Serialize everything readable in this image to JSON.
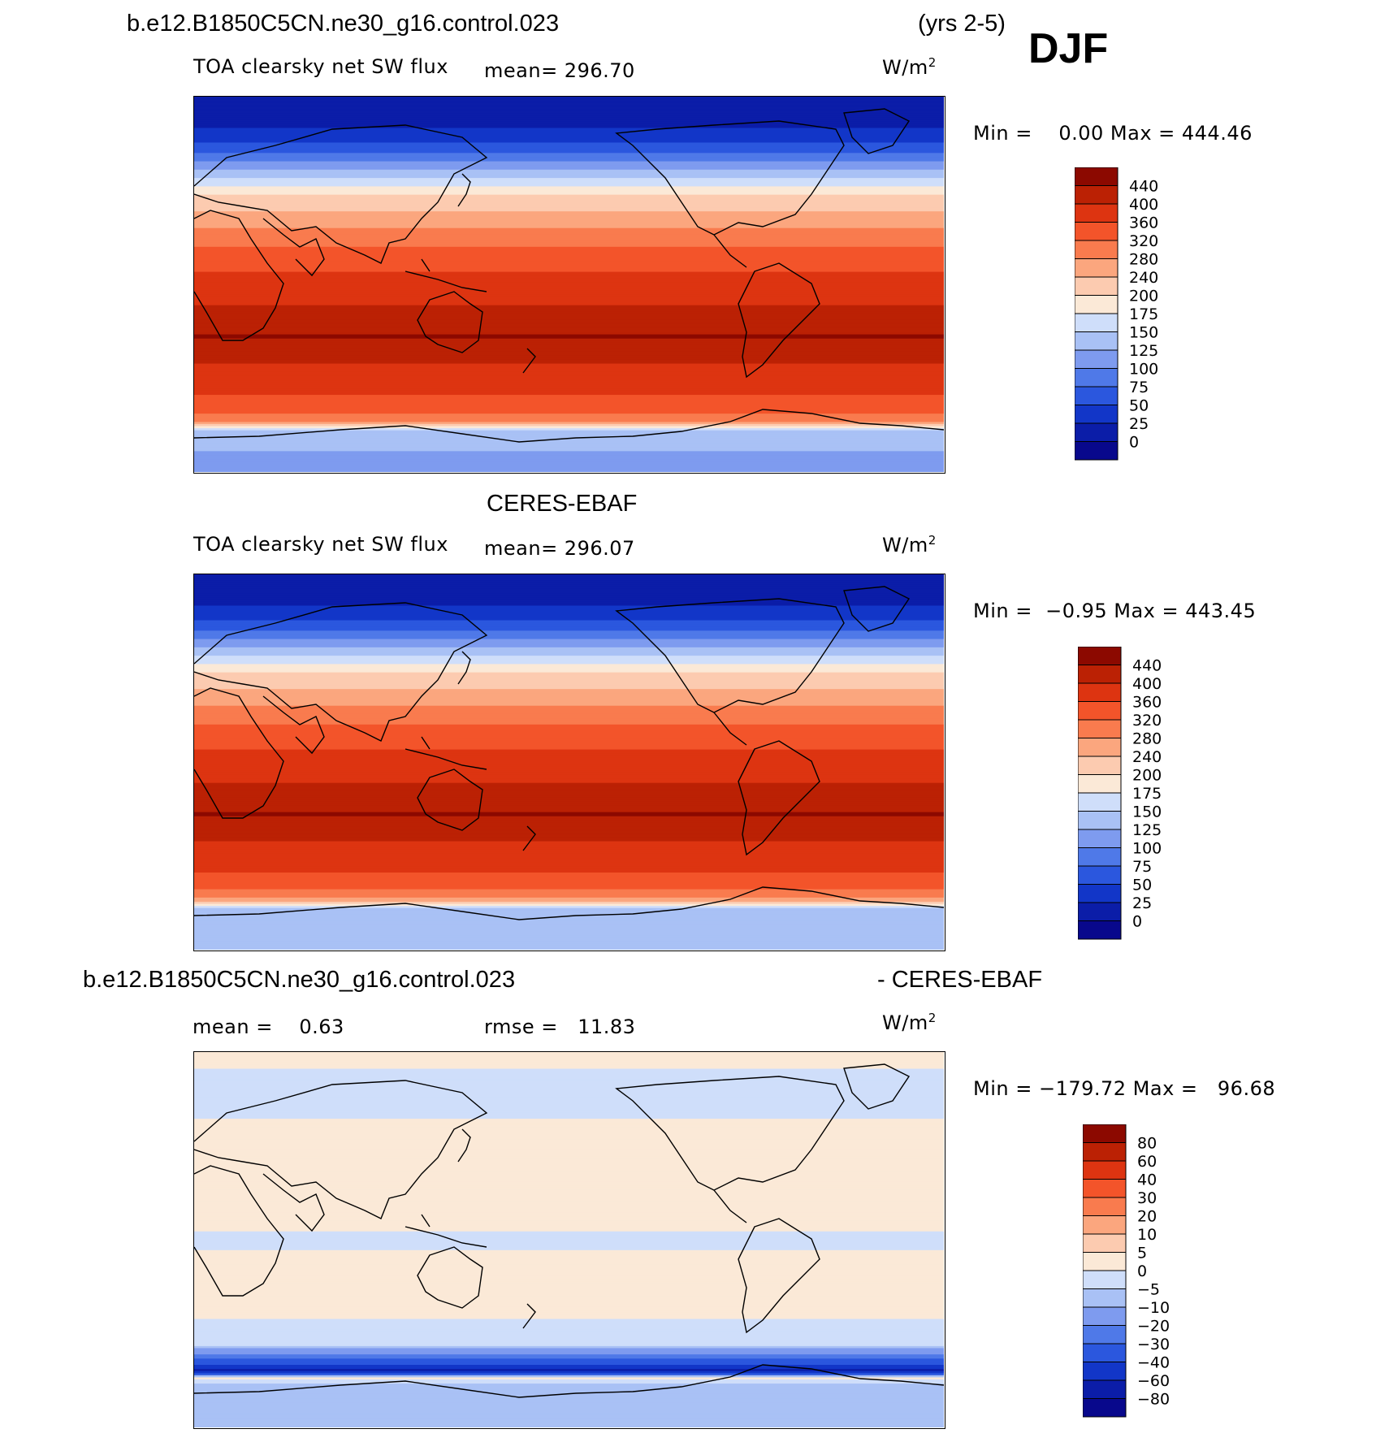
{
  "header": {
    "case_name": "b.e12.B1850C5CN.ne30_g16.control.023",
    "years": "(yrs 2-5)",
    "season": "DJF"
  },
  "colors": {
    "abs_palette": [
      "#08088c",
      "#0b1da8",
      "#1236c8",
      "#2b57de",
      "#4f79e8",
      "#7e9bef",
      "#a9c1f5",
      "#cfdefa",
      "#fbe9d7",
      "#fccbb0",
      "#fba67e",
      "#f97b4e",
      "#f3542a",
      "#dd3411",
      "#bb2104",
      "#8c0900"
    ],
    "diff_palette": [
      "#08088c",
      "#0b1da8",
      "#1236c8",
      "#2b57de",
      "#4f79e8",
      "#7e9bef",
      "#a9c1f5",
      "#cfdefa",
      "#fbe9d7",
      "#fccbb0",
      "#fba67e",
      "#f97b4e",
      "#f3542a",
      "#dd3411",
      "#bb2104",
      "#8c0900"
    ],
    "coastline": "#000000"
  },
  "panels": [
    {
      "id": "model",
      "title": "",
      "variable": "TOA clearsky net SW flux",
      "mean_text": "mean= 296.70",
      "units_base": "W/m",
      "units_exp": "2",
      "minmax_text": "Min =    0.00 Max = 444.46",
      "colorbar_labels": [
        "440",
        "400",
        "360",
        "320",
        "280",
        "240",
        "200",
        "175",
        "150",
        "125",
        "100",
        "75",
        "50",
        "25",
        "0"
      ]
    },
    {
      "id": "obs",
      "title": "CERES-EBAF",
      "variable": "TOA clearsky net SW flux",
      "mean_text": "mean= 296.07",
      "units_base": "W/m",
      "units_exp": "2",
      "minmax_text": "Min =  −0.95 Max = 443.45",
      "colorbar_labels": [
        "440",
        "400",
        "360",
        "320",
        "280",
        "240",
        "200",
        "175",
        "150",
        "125",
        "100",
        "75",
        "50",
        "25",
        "0"
      ]
    },
    {
      "id": "diff",
      "title_left": "b.e12.B1850C5CN.ne30_g16.control.023",
      "title_right": "- CERES-EBAF",
      "mean_text": "mean =    0.63",
      "rmse_text": "rmse =   11.83",
      "units_base": "W/m",
      "units_exp": "2",
      "minmax_text": "Min = −179.72 Max =   96.68",
      "colorbar_labels": [
        "80",
        "60",
        "40",
        "30",
        "20",
        "10",
        "5",
        "0",
        "−5",
        "−10",
        "−20",
        "−30",
        "−40",
        "−60",
        "−80"
      ]
    }
  ],
  "chart_data": [
    {
      "type": "heatmap",
      "title": "b.e12.B1850C5CN.ne30_g16.control.023 (yrs 2-5) DJF",
      "variable": "TOA clearsky net SW flux",
      "units": "W/m2",
      "mean": 296.7,
      "min": 0.0,
      "max": 444.46,
      "contour_levels": [
        0,
        25,
        50,
        75,
        100,
        125,
        150,
        175,
        200,
        240,
        280,
        320,
        360,
        400,
        440
      ],
      "lat_profile": {
        "lat": [
          90,
          80,
          70,
          60,
          50,
          40,
          30,
          20,
          10,
          0,
          -10,
          -20,
          -25,
          -30,
          -40,
          -50,
          -60,
          -65,
          -70,
          -80,
          -90
        ],
        "value": [
          0,
          10,
          40,
          90,
          160,
          215,
          265,
          310,
          350,
          375,
          400,
          425,
          444,
          420,
          395,
          370,
          330,
          300,
          135,
          125,
          120
        ]
      }
    },
    {
      "type": "heatmap",
      "title": "CERES-EBAF",
      "variable": "TOA clearsky net SW flux",
      "units": "W/m2",
      "mean": 296.07,
      "min": -0.95,
      "max": 443.45,
      "contour_levels": [
        0,
        25,
        50,
        75,
        100,
        125,
        150,
        175,
        200,
        240,
        280,
        320,
        360,
        400,
        440
      ],
      "lat_profile": {
        "lat": [
          90,
          80,
          70,
          60,
          50,
          40,
          30,
          20,
          10,
          0,
          -10,
          -20,
          -25,
          -30,
          -40,
          -50,
          -60,
          -65,
          -70,
          -80,
          -90
        ],
        "value": [
          0,
          10,
          40,
          90,
          160,
          215,
          265,
          310,
          350,
          375,
          400,
          425,
          443,
          420,
          395,
          370,
          330,
          290,
          140,
          130,
          125
        ]
      }
    },
    {
      "type": "heatmap",
      "title": "b.e12.B1850C5CN.ne30_g16.control.023 - CERES-EBAF",
      "units": "W/m2",
      "mean": 0.63,
      "rmse": 11.83,
      "min": -179.72,
      "max": 96.68,
      "contour_levels": [
        -80,
        -60,
        -40,
        -30,
        -20,
        -10,
        -5,
        0,
        5,
        10,
        20,
        30,
        40,
        60,
        80
      ],
      "lat_profile": {
        "lat": [
          90,
          70,
          50,
          30,
          10,
          0,
          -10,
          -30,
          -50,
          -60,
          -63,
          -66,
          -70,
          -80,
          -90
        ],
        "value": [
          2,
          -3,
          2,
          2,
          3,
          -2,
          2,
          2,
          -3,
          -40,
          -70,
          5,
          -10,
          -8,
          -6
        ]
      }
    }
  ]
}
